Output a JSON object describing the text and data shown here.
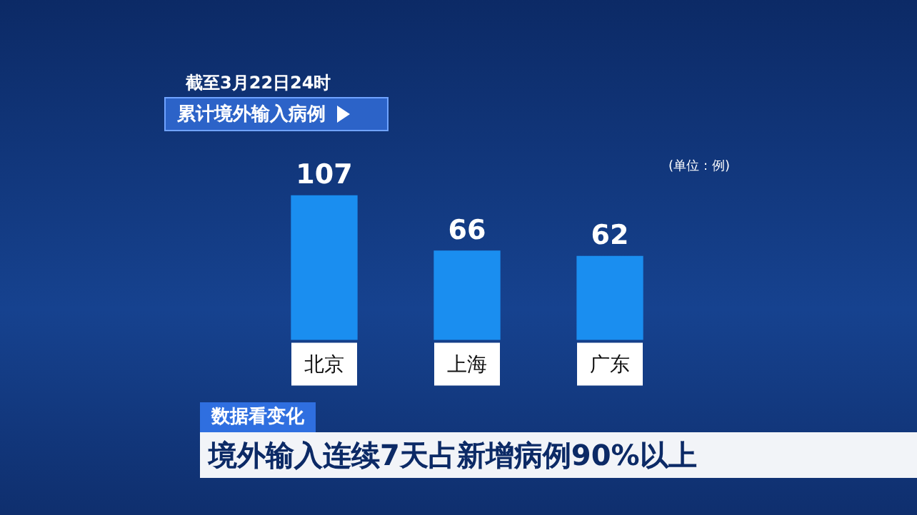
{
  "chart_data": {
    "type": "bar",
    "title": "累计境外输入病例",
    "subtitle": "截至3月22日24时",
    "annotations": [
      "(单位：例)",
      "数据看变化",
      "境外输入连续7天占新增病例90%以上"
    ],
    "categories": [
      "北京",
      "上海",
      "广东"
    ],
    "values": [
      107,
      66,
      62
    ],
    "color": "#1a8ef0",
    "data_labels": true,
    "grid": false,
    "legend": false
  }
}
